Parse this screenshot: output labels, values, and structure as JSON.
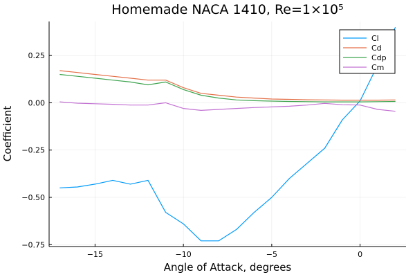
{
  "chart_data": {
    "type": "line",
    "title": "Homemade NACA 1410, Re=1×10⁵",
    "xlabel": "Angle of Attack, degrees",
    "ylabel": "Coefficient",
    "xlim": [
      -17.6,
      2.6
    ],
    "ylim": [
      -0.76,
      0.43
    ],
    "xticks": [
      -15,
      -10,
      -5,
      0
    ],
    "xtick_labels": [
      "−15",
      "−10",
      "−5",
      "0"
    ],
    "yticks": [
      -0.75,
      -0.5,
      -0.25,
      0,
      0.25
    ],
    "ytick_labels": [
      "−0.75",
      "−0.50",
      "−0.25",
      "0.00",
      "0.25"
    ],
    "grid": true,
    "legend_position": "top-right",
    "x": [
      -17,
      -16,
      -15,
      -14,
      -13,
      -12,
      -11,
      -10,
      -9,
      -8,
      -7,
      -6,
      -5,
      -4,
      -3,
      -2,
      -1,
      0,
      1,
      2
    ],
    "series": [
      {
        "name": "Cl",
        "color": "#009AFA",
        "values": [
          -0.45,
          -0.445,
          -0.43,
          -0.41,
          -0.43,
          -0.41,
          -0.58,
          -0.64,
          -0.73,
          -0.73,
          -0.67,
          -0.58,
          -0.5,
          -0.4,
          -0.32,
          -0.24,
          -0.09,
          0.01,
          0.2,
          0.4
        ]
      },
      {
        "name": "Cd",
        "color": "#E36F47",
        "values": [
          0.17,
          0.16,
          0.15,
          0.14,
          0.13,
          0.12,
          0.12,
          0.08,
          0.05,
          0.04,
          0.03,
          0.025,
          0.02,
          0.018,
          0.016,
          0.015,
          0.014,
          0.014,
          0.014,
          0.015
        ]
      },
      {
        "name": "Cdp",
        "color": "#3EA44E",
        "values": [
          0.15,
          0.14,
          0.13,
          0.12,
          0.11,
          0.095,
          0.11,
          0.07,
          0.04,
          0.025,
          0.015,
          0.011,
          0.009,
          0.007,
          0.006,
          0.005,
          0.005,
          0.005,
          0.006,
          0.007
        ]
      },
      {
        "name": "Cm",
        "color": "#C271D2",
        "values": [
          0.005,
          -0.002,
          -0.005,
          -0.008,
          -0.012,
          -0.012,
          0.0,
          -0.03,
          -0.04,
          -0.035,
          -0.03,
          -0.025,
          -0.022,
          -0.018,
          -0.012,
          -0.003,
          -0.01,
          -0.012,
          -0.035,
          -0.045
        ]
      }
    ]
  }
}
